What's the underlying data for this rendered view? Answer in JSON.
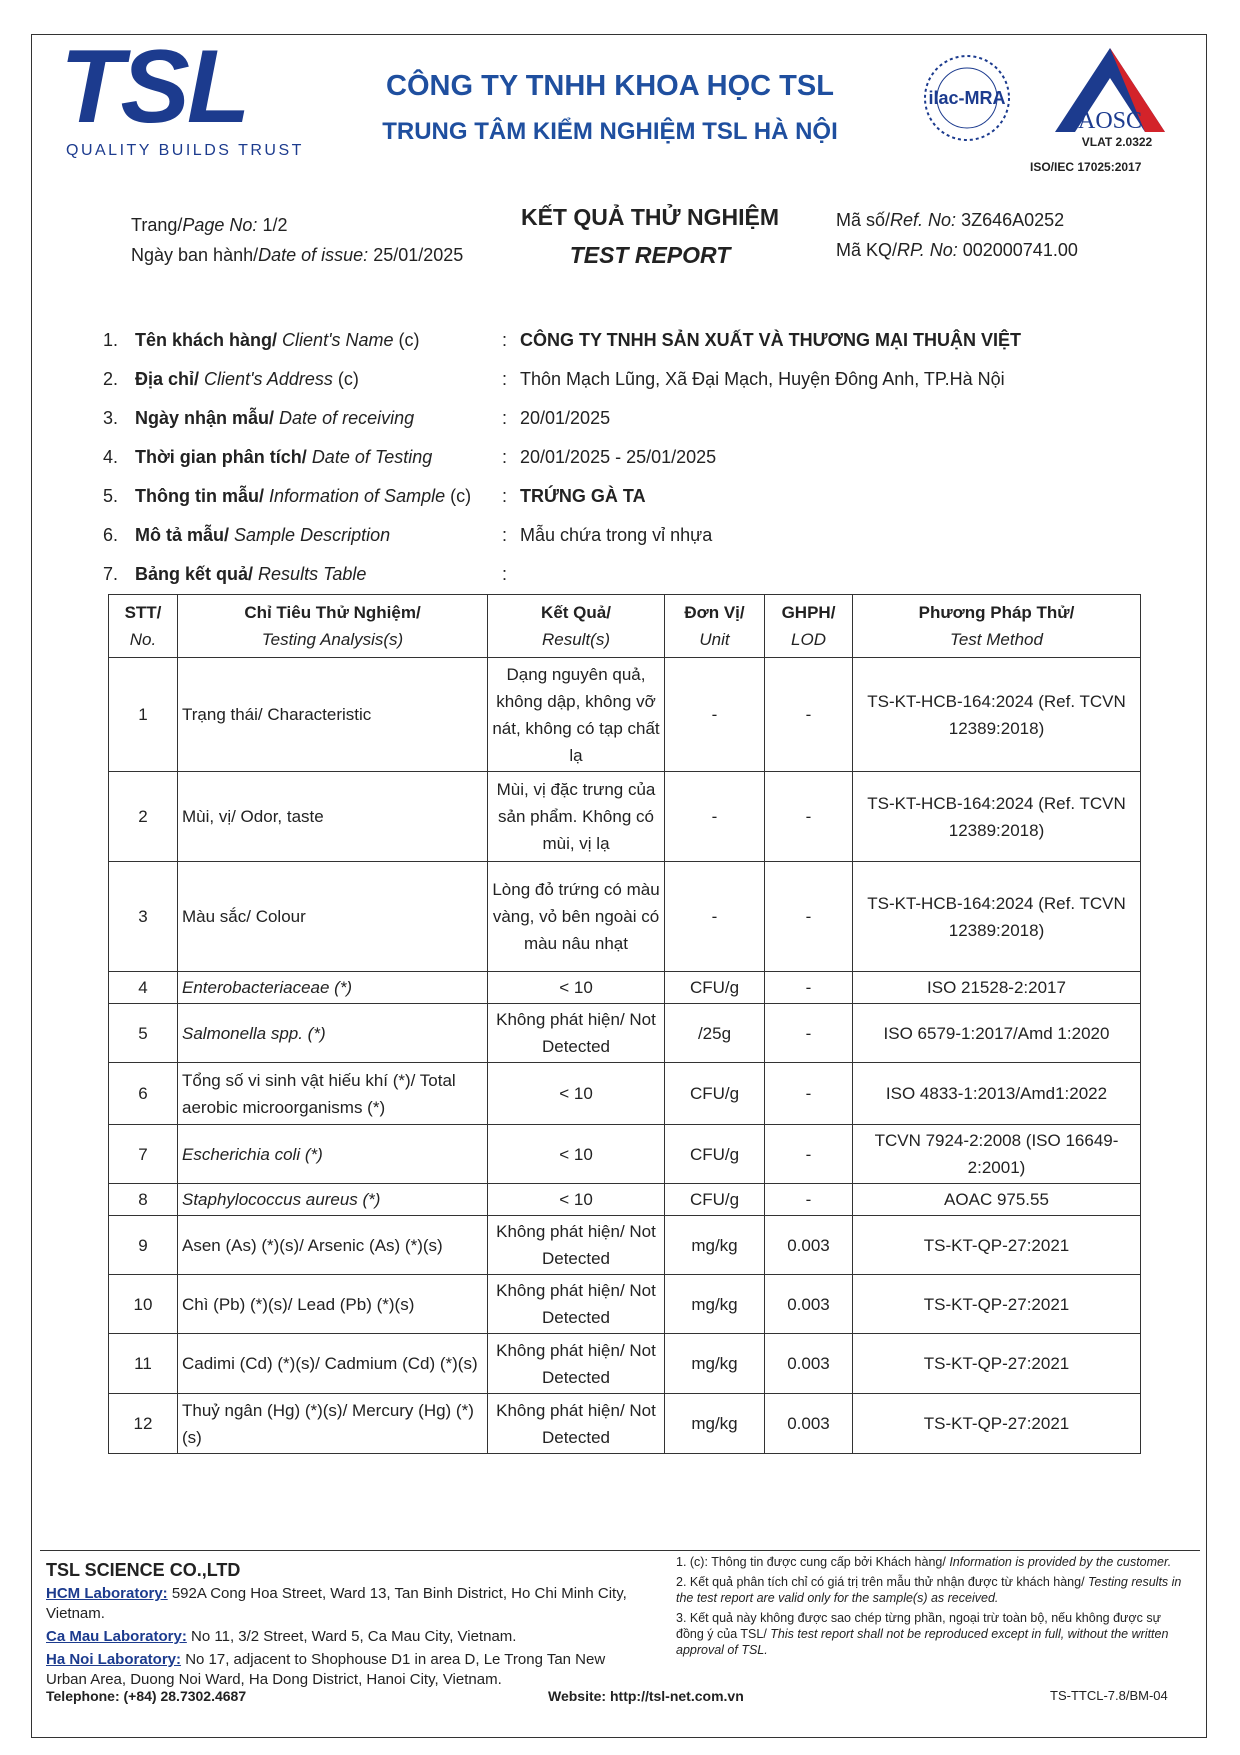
{
  "header": {
    "logo": "TSL",
    "tagline": "QUALITY BUILDS TRUST",
    "company": "CÔNG TY TNHH KHOA HỌC TSL",
    "center": "TRUNG TÂM KIỂM NGHIỆM TSL HÀ NỘI",
    "ilac": "ilac-MRA",
    "aosc": "AOSC",
    "vlat": "VLAT 2.0322",
    "iso": "ISO/IEC 17025:2017"
  },
  "meta": {
    "page": {
      "label_vi": "Trang/",
      "label_en": "Page No:",
      "value": "1/2"
    },
    "issue": {
      "label_vi": "Ngày ban hành/",
      "label_en": "Date of issue:",
      "value": "25/01/2025"
    },
    "ref": {
      "label_vi": "Mã số/",
      "label_en": "Ref. No:",
      "value": "3Z646A0252"
    },
    "rp": {
      "label_vi": "Mã KQ/",
      "label_en": "RP. No:",
      "value": "002000741.00"
    }
  },
  "title": {
    "vi": "KẾT QUẢ THỬ NGHIỆM",
    "en": "TEST REPORT"
  },
  "info": {
    "separator": ":",
    "items": [
      {
        "no": "1.",
        "label_vi": "Tên khách hàng/",
        "label_en": "Client's Name",
        "note": "(c)",
        "value": "CÔNG TY TNHH SẢN XUẤT VÀ THƯƠNG MẠI THUẬN VIỆT"
      },
      {
        "no": "2.",
        "label_vi": "Địa chỉ/",
        "label_en": "Client's Address",
        "note": "(c)",
        "value": "Thôn Mạch Lũng, Xã Đại Mạch, Huyện Đông Anh, TP.Hà Nội"
      },
      {
        "no": "3.",
        "label_vi": "Ngày nhận mẫu/",
        "label_en": "Date of receiving",
        "value": "20/01/2025"
      },
      {
        "no": "4.",
        "label_vi": "Thời gian phân tích/",
        "label_en": "Date of Testing",
        "value": "20/01/2025 - 25/01/2025"
      },
      {
        "no": "5.",
        "label_vi": "Thông tin mẫu/",
        "label_en": "Information of Sample",
        "note": "(c)",
        "value": "TRỨNG GÀ TA"
      },
      {
        "no": "6.",
        "label_vi": "Mô tả mẫu/",
        "label_en": "Sample Description",
        "value": "Mẫu chứa trong vỉ nhựa"
      },
      {
        "no": "7.",
        "label_vi": "Bảng kết quả/",
        "label_en": "Results Table"
      }
    ]
  },
  "table": {
    "headers": [
      {
        "vi": "STT/",
        "en": "No."
      },
      {
        "vi": "Chỉ Tiêu Thử Nghiệm/",
        "en": "Testing Analysis(s)"
      },
      {
        "vi": "Kết Quả/",
        "en": "Result(s)"
      },
      {
        "vi": "Đơn Vị/",
        "en": "Unit"
      },
      {
        "vi": "GHPH/",
        "en": "LOD"
      },
      {
        "vi": "Phương Pháp Thử/",
        "en": "Test Method"
      }
    ],
    "rows": [
      {
        "no": "1",
        "analysis": "Trạng thái/ Characteristic",
        "result": "Dạng nguyên quả, không dập, không vỡ nát, không có tạp chất lạ",
        "unit": "-",
        "lod": "-",
        "method": "TS-KT-HCB-164:2024 (Ref. TCVN 12389:2018)"
      },
      {
        "no": "2",
        "analysis": "Mùi, vị/ Odor, taste",
        "result": "Mùi, vị đặc trưng của sản phẩm. Không có mùi, vị lạ",
        "unit": "-",
        "lod": "-",
        "method": "TS-KT-HCB-164:2024 (Ref. TCVN 12389:2018)"
      },
      {
        "no": "3",
        "analysis": "Màu sắc/ Colour",
        "result": "Lòng đỏ trứng có màu vàng, vỏ bên ngoài có màu nâu nhạt",
        "unit": "-",
        "lod": "-",
        "method": "TS-KT-HCB-164:2024 (Ref. TCVN 12389:2018)"
      },
      {
        "no": "4",
        "analysis": "Enterobacteriaceae (*)",
        "italic": true,
        "result": "< 10",
        "unit": "CFU/g",
        "lod": "-",
        "method": "ISO 21528-2:2017"
      },
      {
        "no": "5",
        "analysis": "Salmonella spp. (*)",
        "italic": true,
        "result": "Không phát hiện/ Not Detected",
        "unit": "/25g",
        "lod": "-",
        "method": "ISO 6579-1:2017/Amd 1:2020"
      },
      {
        "no": "6",
        "analysis": "Tổng số vi sinh vật hiếu khí (*)/ Total aerobic microorganisms (*)",
        "result": "< 10",
        "unit": "CFU/g",
        "lod": "-",
        "method": "ISO 4833-1:2013/Amd1:2022"
      },
      {
        "no": "7",
        "analysis": "Escherichia coli (*)",
        "italic": true,
        "result": "< 10",
        "unit": "CFU/g",
        "lod": "-",
        "method": "TCVN 7924-2:2008 (ISO 16649-2:2001)"
      },
      {
        "no": "8",
        "analysis": "Staphylococcus aureus (*)",
        "italic": true,
        "result": "< 10",
        "unit": "CFU/g",
        "lod": "-",
        "method": "AOAC 975.55"
      },
      {
        "no": "9",
        "analysis": "Asen (As) (*)(s)/ Arsenic (As) (*)(s)",
        "result": "Không phát hiện/ Not Detected",
        "unit": "mg/kg",
        "lod": "0.003",
        "method": "TS-KT-QP-27:2021"
      },
      {
        "no": "10",
        "analysis": "Chì (Pb) (*)(s)/ Lead (Pb) (*)(s)",
        "result": "Không phát hiện/ Not Detected",
        "unit": "mg/kg",
        "lod": "0.003",
        "method": "TS-KT-QP-27:2021"
      },
      {
        "no": "11",
        "analysis": "Cadimi (Cd) (*)(s)/ Cadmium (Cd) (*)(s)",
        "result": "Không phát hiện/ Not Detected",
        "unit": "mg/kg",
        "lod": "0.003",
        "method": "TS-KT-QP-27:2021"
      },
      {
        "no": "12",
        "analysis": "Thuỷ ngân (Hg) (*)(s)/ Mercury (Hg) (*)(s)",
        "result": "Không phát hiện/ Not Detected",
        "unit": "mg/kg",
        "lod": "0.003",
        "method": "TS-KT-QP-27:2021"
      }
    ]
  },
  "footer": {
    "company": "TSL SCIENCE CO.,LTD",
    "labs": [
      {
        "label": "HCM Laboratory:",
        "address": "592A Cong Hoa Street, Ward 13, Tan Binh District, Ho Chi Minh City, Vietnam."
      },
      {
        "label": "Ca Mau Laboratory:",
        "address": "No 11, 3/2 Street, Ward 5, Ca Mau City, Vietnam."
      },
      {
        "label": "Ha Noi Laboratory:",
        "address": "No 17, adjacent to Shophouse D1 in area D, Le Trong Tan New Urban Area, Duong Noi Ward, Ha Dong District, Hanoi City, Vietnam."
      }
    ],
    "telephone": "Telephone: (+84) 28.7302.4687",
    "website": "Website: http://tsl-net.com.vn",
    "notes": [
      {
        "vi": "1. (c): Thông tin được cung cấp bởi Khách hàng/",
        "en": "Information is provided by the customer."
      },
      {
        "vi": "2. Kết quả phân tích chỉ có giá trị trên mẫu thử nhận được từ khách hàng/",
        "en": "Testing results in the test report are valid only for the sample(s) as received."
      },
      {
        "vi": "3. Kết quả này không được sao chép từng phần, ngoại trừ toàn bộ, nếu không được sự đồng ý của TSL/",
        "en": "This test report shall not be reproduced except in full, without the written approval of TSL."
      }
    ],
    "code": "TS-TTCL-7.8/BM-04"
  }
}
